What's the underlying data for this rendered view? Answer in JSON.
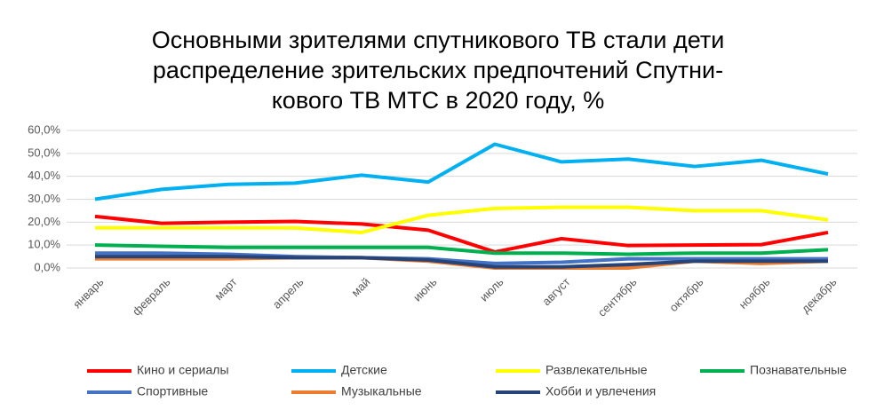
{
  "chart_data": {
    "type": "line",
    "title": [
      "Основными зрителями спутникового ТВ стали дети",
      "распределение зрительских предпочтений Спутни-",
      "кового ТВ МТС в 2020 году, %"
    ],
    "categories": [
      "январь",
      "февраль",
      "март",
      "апрель",
      "май",
      "июнь",
      "июль",
      "август",
      "сентябрь",
      "октябрь",
      "ноябрь",
      "декабрь"
    ],
    "series": [
      {
        "name": "Кино и сериалы",
        "color": "#ff0000",
        "values": [
          22.5,
          19.5,
          20,
          20.3,
          19.2,
          16.5,
          7,
          12.8,
          9.8,
          10,
          10.2,
          15.5
        ]
      },
      {
        "name": "Детские",
        "color": "#00b0f0",
        "values": [
          30,
          34.3,
          36.5,
          37,
          40.5,
          37.5,
          54,
          46.3,
          47.5,
          44.3,
          47,
          41
        ]
      },
      {
        "name": "Развлекательные",
        "color": "#ffff00",
        "values": [
          17.5,
          17.5,
          17.5,
          17.5,
          15.5,
          23,
          26,
          26.5,
          26.5,
          25,
          25,
          21
        ]
      },
      {
        "name": "Познавательные",
        "color": "#00b050",
        "values": [
          10,
          9.5,
          9,
          9,
          9,
          9,
          6.5,
          6.5,
          6,
          6.5,
          6.5,
          8
        ]
      },
      {
        "name": "Спортивные",
        "color": "#4472c4",
        "values": [
          6.5,
          6.5,
          6,
          5,
          4.5,
          4,
          2,
          2.5,
          4,
          4,
          4,
          4
        ]
      },
      {
        "name": "Музыкальные",
        "color": "#ed7d31",
        "values": [
          4,
          4,
          4,
          4.5,
          4.5,
          3,
          0,
          0,
          0,
          3,
          2,
          3
        ]
      },
      {
        "name": "Хобби и увлечения",
        "color": "#264478",
        "values": [
          5,
          5,
          5,
          4.5,
          4.5,
          3.5,
          0.5,
          0.5,
          1.5,
          3,
          3,
          3
        ]
      }
    ],
    "ylim": [
      0,
      60
    ],
    "yticks": [
      {
        "value": 0,
        "label": "0,0%"
      },
      {
        "value": 10,
        "label": "10,0%"
      },
      {
        "value": 20,
        "label": "20,0%"
      },
      {
        "value": 30,
        "label": "30,0%"
      },
      {
        "value": 40,
        "label": "40,0%"
      },
      {
        "value": 50,
        "label": "50,0%"
      },
      {
        "value": 60,
        "label": "60,0%"
      }
    ],
    "grid": true
  }
}
